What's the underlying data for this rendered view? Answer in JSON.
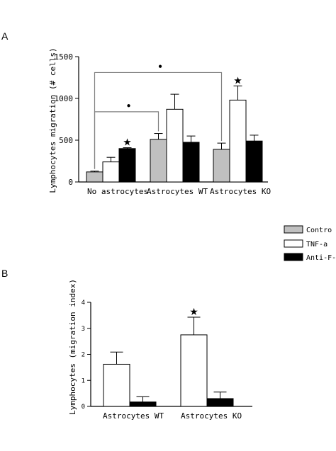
{
  "colors": {
    "control": "#c0c0c0",
    "tnf": "#ffffff",
    "antitnf": "#000000",
    "axis": "#000000",
    "bracket": "#808080"
  },
  "chart_data": [
    {
      "panel_label": "A",
      "type": "bar",
      "ylabel": "Lymphocytes migration (# cells)",
      "ylim": [
        0,
        1500
      ],
      "yticks": [
        0,
        500,
        1000,
        1500
      ],
      "categories": [
        "No astrocytes",
        "Astrocytes WT",
        "Astrocytes KO"
      ],
      "series": [
        {
          "name": "Control",
          "values": [
            120,
            510,
            390
          ],
          "errors": [
            10,
            70,
            75
          ]
        },
        {
          "name": "TNF-a",
          "values": [
            240,
            870,
            980
          ],
          "errors": [
            55,
            180,
            170
          ]
        },
        {
          "name": "Anti-TNF",
          "values": [
            400,
            475,
            490
          ],
          "errors": [
            10,
            75,
            70
          ]
        }
      ],
      "annotations": [
        {
          "text": "★",
          "category": 0,
          "series": 2
        },
        {
          "text": "★",
          "category": 2,
          "series": 1
        }
      ],
      "brackets": [
        {
          "from_category": 0,
          "to_category": 1,
          "level": 840,
          "mark": "●"
        },
        {
          "from_category": 0,
          "to_category": 2,
          "level": 1310,
          "mark": "●"
        }
      ]
    },
    {
      "panel_label": "B",
      "type": "bar",
      "ylabel": "Lymphocytes (migration index)",
      "ylim": [
        0,
        4
      ],
      "yticks": [
        0,
        1,
        2,
        3,
        4
      ],
      "categories": [
        "Astrocytes WT",
        "Astrocytes KO"
      ],
      "series": [
        {
          "name": "TNF-a",
          "values": [
            1.62,
            2.75
          ],
          "errors": [
            0.47,
            0.68
          ]
        },
        {
          "name": "Anti-TNF",
          "values": [
            0.17,
            0.3
          ],
          "errors": [
            0.2,
            0.25
          ]
        }
      ],
      "annotations": [
        {
          "text": "★",
          "category": 1,
          "series": 0
        }
      ]
    }
  ],
  "legend": {
    "position": "right",
    "items": [
      {
        "label": "Contro",
        "series": "Control"
      },
      {
        "label": "TNF-a",
        "series": "TNF-a"
      },
      {
        "label": "Anti-F-",
        "series": "Anti-TNF"
      }
    ]
  }
}
